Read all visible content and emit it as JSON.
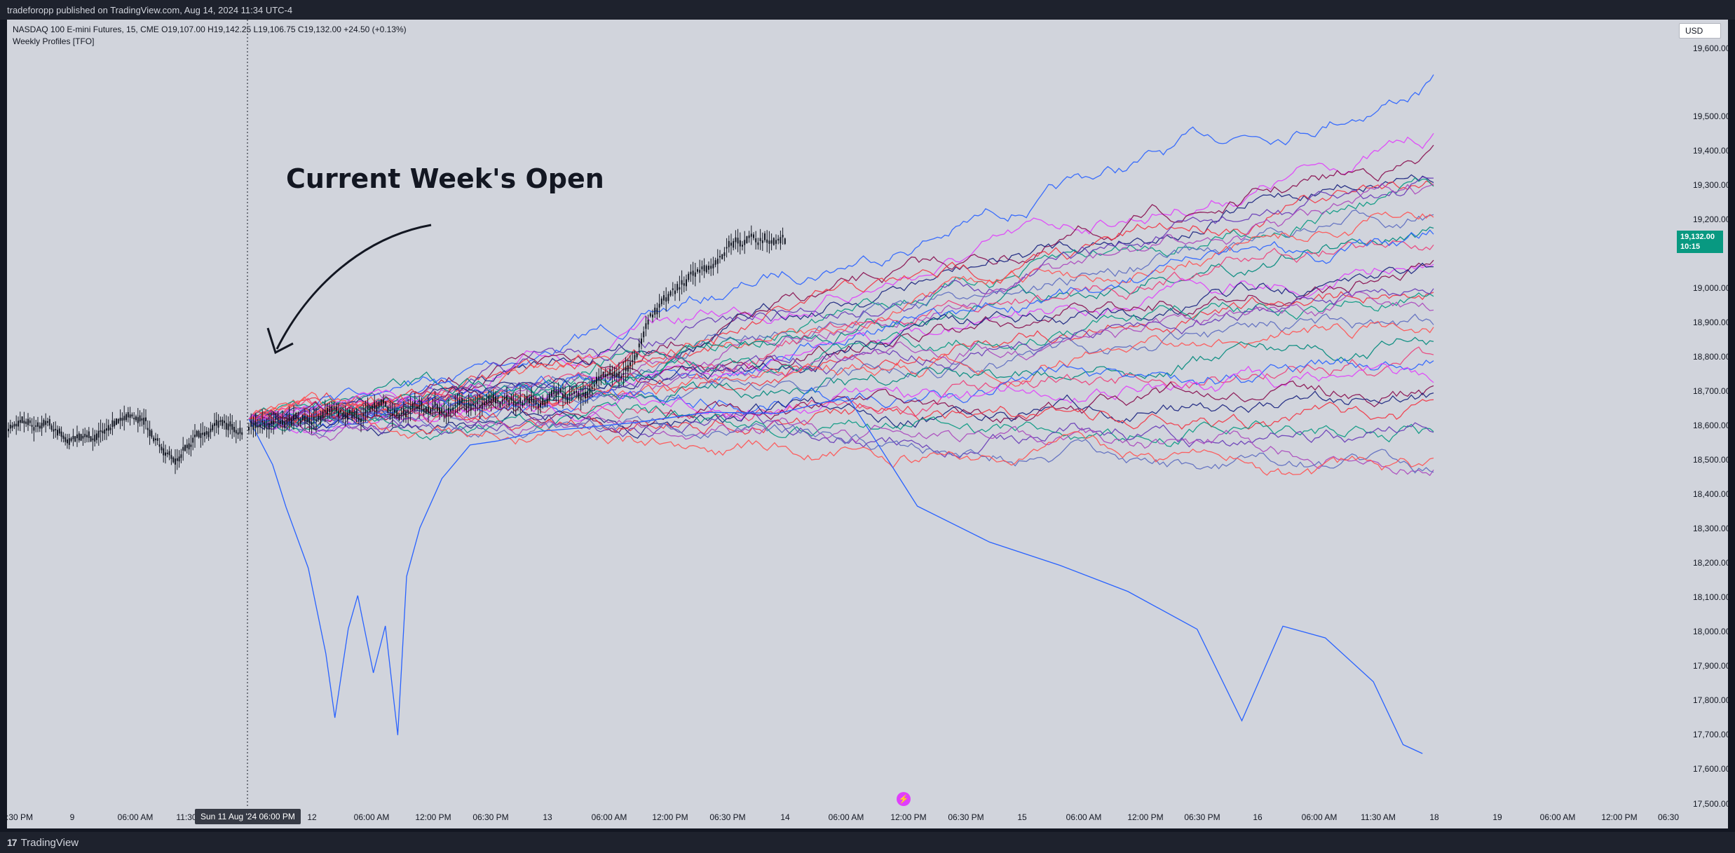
{
  "header": {
    "publish_text": "tradeforopp published on TradingView.com, Aug 14, 2024 11:34 UTC-4"
  },
  "legend": {
    "symbol_line": "NASDAQ 100 E-mini Futures, 15, CME  O19,107.00  H19,142.25  L19,106.75  C19,132.00  +24.50 (+0.13%)",
    "indicator": "Weekly Profiles [TFO]"
  },
  "currency_button": "USD",
  "price_axis": [
    "19,600.00",
    "19,500.00",
    "19,400.00",
    "19,300.00",
    "19,200.00",
    "19,000.00",
    "18,900.00",
    "18,800.00",
    "18,700.00",
    "18,600.00",
    "18,500.00",
    "18,400.00",
    "18,300.00",
    "18,200.00",
    "18,100.00",
    "18,000.00",
    "17,900.00",
    "17,800.00",
    "17,700.00",
    "17,600.00",
    "17,500.00"
  ],
  "last_price": {
    "price": "19,132.00",
    "countdown": "10:15",
    "color": "#089981"
  },
  "time_axis": [
    ":30 PM",
    "9",
    "06:00 AM",
    "11:30",
    "12",
    "06:00 AM",
    "12:00 PM",
    "06:30 PM",
    "13",
    "06:00 AM",
    "12:00 PM",
    "06:30 PM",
    "14",
    "06:00 AM",
    "12:00 PM",
    "06:30 PM",
    "15",
    "06:00 AM",
    "12:00 PM",
    "06:30 PM",
    "16",
    "06:00 AM",
    "11:30 AM",
    "18",
    "19",
    "06:00 AM",
    "12:00 PM",
    "06:30"
  ],
  "crosshair_time_label": "Sun 11 Aug '24   06:00 PM",
  "annotation": {
    "text": "Current Week's Open"
  },
  "footer": {
    "brand": "TradingView"
  },
  "icons": {
    "logo": "tradingview-logo-icon",
    "event": "lightning-event-icon"
  },
  "colors": {
    "chart_background": "#d1d4dc",
    "candles": "#131722",
    "profile_lines": [
      "#2962ff",
      "#e040fb",
      "#880e4f",
      "#1a237e",
      "#f23645",
      "#089981",
      "#673ab7",
      "#ab47bc",
      "#5c6bc0",
      "#ff5252",
      "#00897b",
      "#ec407a"
    ]
  }
}
